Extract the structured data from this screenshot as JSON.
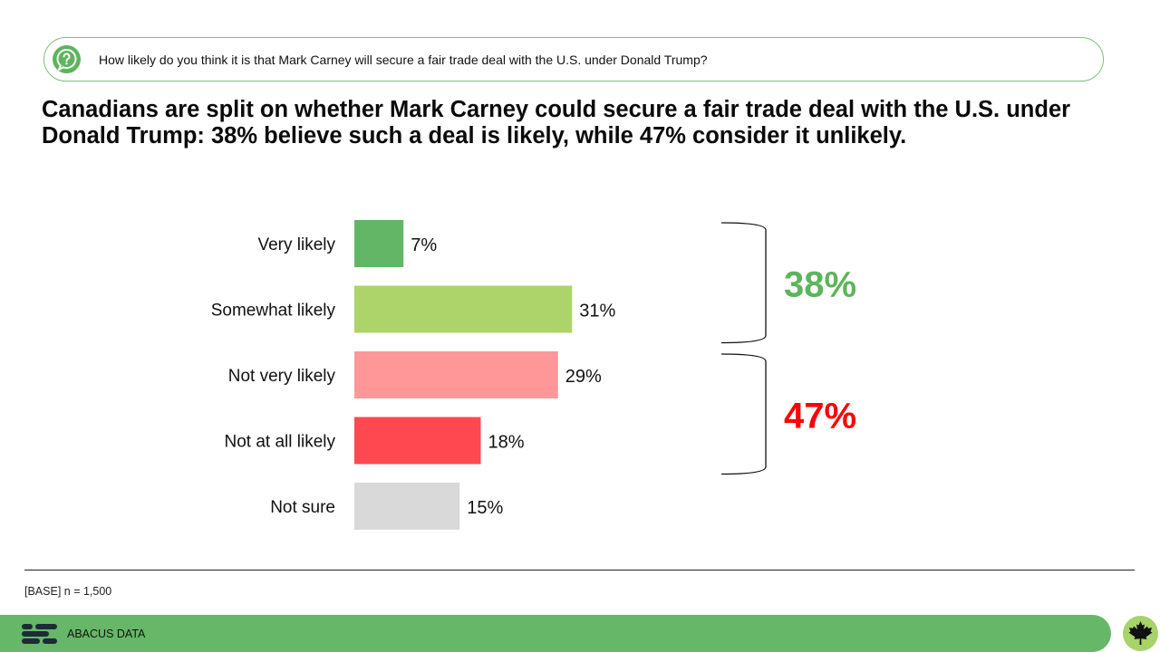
{
  "question": "How likely do you think it is that Mark Carney will secure a fair trade deal with the U.S. under Donald Trump?",
  "headline": "Canadians are split on whether Mark Carney could secure a fair trade deal with the U.S. under Donald Trump: 38% believe such a deal is likely, while 47% consider it unlikely.",
  "chart_data": {
    "type": "bar",
    "orientation": "horizontal",
    "categories": [
      "Very likely",
      "Somewhat likely",
      "Not very likely",
      "Not at all likely",
      "Not sure"
    ],
    "values": [
      7,
      31,
      29,
      18,
      15
    ],
    "value_labels": [
      "7%",
      "31%",
      "29%",
      "18%",
      "15%"
    ],
    "colors": [
      "#62b665",
      "#acd46a",
      "#ff9799",
      "#ff4850",
      "#d9d9d9"
    ],
    "grid": false,
    "groups": [
      {
        "label": "38%",
        "members": [
          "Very likely",
          "Somewhat likely"
        ],
        "color": "#5db55b"
      },
      {
        "label": "47%",
        "members": [
          "Not very likely",
          "Not at all likely"
        ],
        "color": "#ff0000"
      }
    ]
  },
  "footer": {
    "base_note": "[BASE] n = 1,500",
    "brand": "ABACUS DATA"
  },
  "icons": {
    "question": "question-icon",
    "logo": "abacus-logo-icon",
    "flag": "maple-leaf-icon"
  }
}
